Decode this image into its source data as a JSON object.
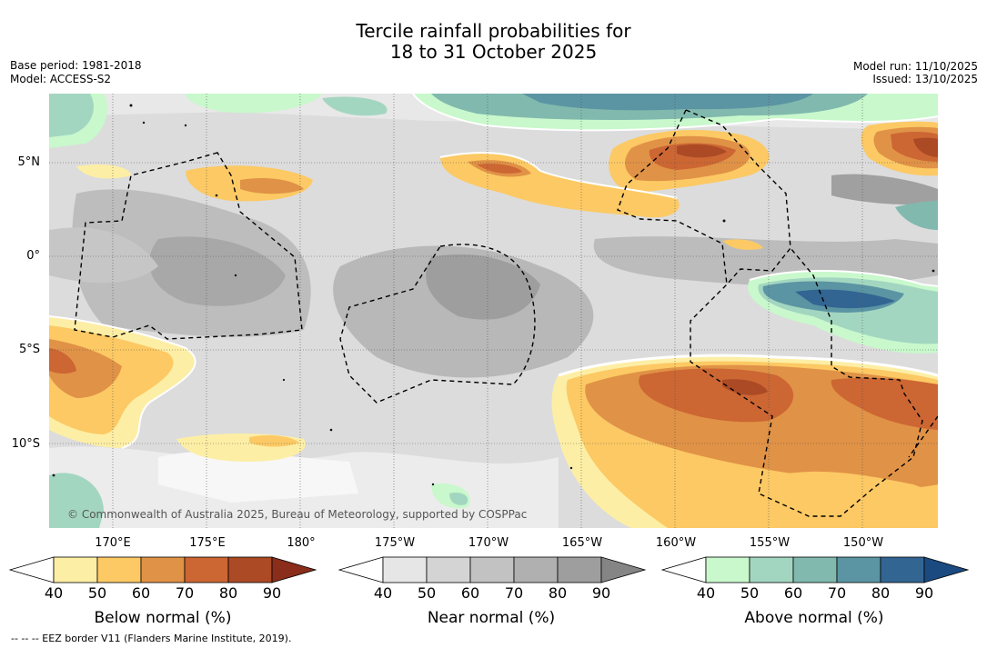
{
  "title": {
    "line1": "Tercile rainfall probabilities for",
    "line2": "18 to 31 October 2025"
  },
  "meta_left": {
    "base_period": "Base period: 1981-2018",
    "model": "Model: ACCESS-S2"
  },
  "meta_right": {
    "model_run": "Model run: 11/10/2025",
    "issued": "Issued: 13/10/2025"
  },
  "axes": {
    "lat_labels": [
      "5°N",
      "0°",
      "5°S",
      "10°S"
    ],
    "lon_labels": [
      "170°E",
      "175°E",
      "180°",
      "175°W",
      "170°W",
      "165°W",
      "160°W",
      "155°W",
      "150°W"
    ]
  },
  "credit": "© Commonwealth of Australia 2025, Bureau of Meteorology, supported by COSPPac",
  "colorbars": [
    {
      "label": "Below normal (%)",
      "ticks": [
        "40",
        "50",
        "60",
        "70",
        "80",
        "90"
      ],
      "colors": [
        "#ffffff",
        "#fdeea5",
        "#fcc964",
        "#e09246",
        "#cc6633",
        "#ab4a25",
        "#8a2d1a"
      ]
    },
    {
      "label": "Near normal (%)",
      "ticks": [
        "40",
        "50",
        "60",
        "70",
        "80",
        "90"
      ],
      "colors": [
        "#ffffff",
        "#e6e6e6",
        "#d4d4d4",
        "#c2c2c2",
        "#b0b0b0",
        "#9e9e9e",
        "#858585"
      ]
    },
    {
      "label": "Above normal (%)",
      "ticks": [
        "40",
        "50",
        "60",
        "70",
        "80",
        "90"
      ],
      "colors": [
        "#ffffff",
        "#c8f8cc",
        "#a3d6c0",
        "#81b9ae",
        "#5b95a3",
        "#326592",
        "#1a4a80"
      ]
    }
  ],
  "eez_note": "--  --  -- EEZ border V11 (Flanders Marine Institute, 2019)."
}
